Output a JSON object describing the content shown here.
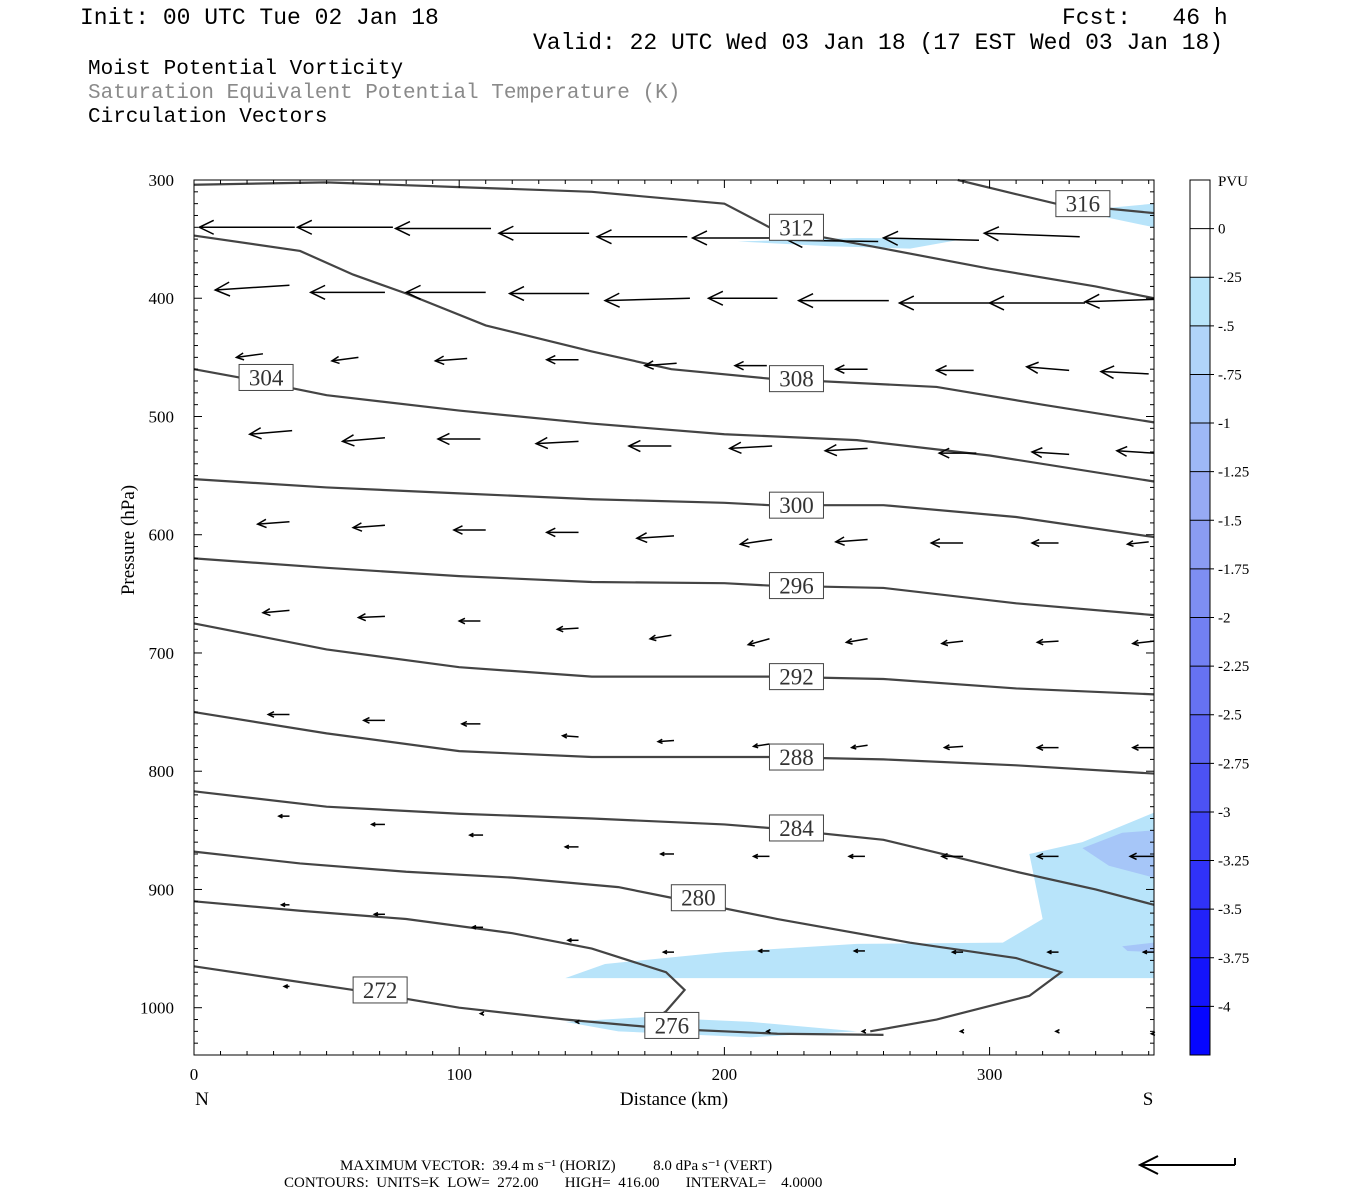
{
  "header": {
    "init": "Init: 00 UTC Tue 02 Jan 18",
    "fcst": "Fcst:   46 h",
    "valid": "Valid: 22 UTC Wed 03 Jan 18 (17 EST Wed 03 Jan 18)"
  },
  "fields": [
    "Moist Potential Vorticity",
    "Saturation Equivalent Potential Temperature (K)",
    "Circulation Vectors"
  ],
  "footer": {
    "line1": "MAXIMUM VECTOR:  39.4 m s⁻¹ (HORIZ)          8.0 dPa s⁻¹ (VERT)",
    "line2": "CONTOURS:  UNITS=K  LOW=  272.00       HIGH=  416.00       INTERVAL=    4.0000"
  },
  "colors": {
    "contour": "#444444",
    "pv_fill_light": "#b8e4fa",
    "pv_fill_medium": "#a6c6f8"
  },
  "chart_data": {
    "type": "cross-section",
    "xlabel": "Distance (km)",
    "ylabel": "Pressure (hPa)",
    "x_ends": [
      "N",
      "S"
    ],
    "xlim": [
      0,
      362
    ],
    "ylim": [
      1040,
      300
    ],
    "x_ticks": [
      0,
      100,
      200,
      300
    ],
    "y_ticks": [
      300,
      400,
      500,
      600,
      700,
      800,
      900,
      1000
    ],
    "colorbar": {
      "label": "PVU",
      "ticks": [
        "0",
        "-.25",
        "-.5",
        "-.75",
        "-1",
        "-1.25",
        "-1.5",
        "-1.75",
        "-2",
        "-2.25",
        "-2.5",
        "-2.75",
        "-3",
        "-3.25",
        "-3.5",
        "-3.75",
        "-4"
      ],
      "colors": [
        "#ffffff",
        "#ffffff",
        "#b8e4fa",
        "#b0d4fa",
        "#a6c6f8",
        "#9eb8f6",
        "#96aaf4",
        "#8a9cf2",
        "#7e8ef2",
        "#7280f2",
        "#6672f2",
        "#5a62f2",
        "#4c52f4",
        "#3e42f6",
        "#3032f8",
        "#2222fa",
        "#1414fc",
        "#0606ff"
      ]
    },
    "contours": [
      {
        "label": "272",
        "label_at": [
          60,
          985
        ],
        "points": [
          [
            0,
            965
          ],
          [
            30,
            975
          ],
          [
            60,
            985
          ],
          [
            100,
            1000
          ],
          [
            140,
            1010
          ],
          [
            180,
            1018
          ],
          [
            220,
            1022
          ],
          [
            260,
            1023
          ]
        ]
      },
      {
        "label": "276",
        "label_at": [
          170,
          1015
        ],
        "points": [
          [
            0,
            910
          ],
          [
            40,
            918
          ],
          [
            80,
            925
          ],
          [
            120,
            937
          ],
          [
            150,
            950
          ],
          [
            178,
            970
          ],
          [
            185,
            985
          ],
          [
            178,
            1003
          ],
          [
            170,
            1015
          ]
        ]
      },
      {
        "label": "280",
        "label_at": [
          180,
          907
        ],
        "points": [
          [
            0,
            868
          ],
          [
            40,
            878
          ],
          [
            80,
            885
          ],
          [
            120,
            890
          ],
          [
            160,
            898
          ],
          [
            180,
            907
          ],
          [
            220,
            925
          ],
          [
            270,
            945
          ],
          [
            310,
            958
          ],
          [
            327,
            970
          ],
          [
            315,
            990
          ],
          [
            280,
            1010
          ],
          [
            255,
            1020
          ]
        ]
      },
      {
        "label": "284",
        "label_at": [
          217,
          848
        ],
        "points": [
          [
            0,
            817
          ],
          [
            50,
            830
          ],
          [
            100,
            836
          ],
          [
            150,
            840
          ],
          [
            200,
            845
          ],
          [
            217,
            848
          ],
          [
            260,
            858
          ],
          [
            310,
            885
          ],
          [
            340,
            900
          ],
          [
            362,
            913
          ]
        ]
      },
      {
        "label": "288",
        "label_at": [
          217,
          788
        ],
        "points": [
          [
            0,
            750
          ],
          [
            50,
            768
          ],
          [
            100,
            783
          ],
          [
            150,
            788
          ],
          [
            200,
            788
          ],
          [
            217,
            788
          ],
          [
            260,
            790
          ],
          [
            310,
            795
          ],
          [
            362,
            802
          ]
        ]
      },
      {
        "label": "292",
        "label_at": [
          217,
          720
        ],
        "points": [
          [
            0,
            675
          ],
          [
            50,
            697
          ],
          [
            100,
            712
          ],
          [
            150,
            720
          ],
          [
            200,
            720
          ],
          [
            217,
            720
          ],
          [
            260,
            722
          ],
          [
            310,
            730
          ],
          [
            362,
            735
          ]
        ]
      },
      {
        "label": "296",
        "label_at": [
          217,
          643
        ],
        "points": [
          [
            0,
            620
          ],
          [
            50,
            628
          ],
          [
            100,
            635
          ],
          [
            150,
            640
          ],
          [
            200,
            641
          ],
          [
            217,
            643
          ],
          [
            260,
            645
          ],
          [
            310,
            658
          ],
          [
            362,
            668
          ]
        ]
      },
      {
        "label": "300",
        "label_at": [
          217,
          575
        ],
        "points": [
          [
            0,
            553
          ],
          [
            50,
            560
          ],
          [
            100,
            565
          ],
          [
            150,
            570
          ],
          [
            200,
            573
          ],
          [
            217,
            575
          ],
          [
            260,
            575
          ],
          [
            310,
            585
          ],
          [
            362,
            602
          ]
        ]
      },
      {
        "label": "304",
        "label_at": [
          17,
          467
        ],
        "points": [
          [
            0,
            460
          ],
          [
            17,
            467
          ],
          [
            50,
            482
          ],
          [
            100,
            495
          ],
          [
            150,
            506
          ],
          [
            200,
            515
          ],
          [
            250,
            520
          ],
          [
            300,
            533
          ],
          [
            362,
            555
          ]
        ]
      },
      {
        "label": "308",
        "label_at": [
          217,
          468
        ],
        "points": [
          [
            0,
            347
          ],
          [
            40,
            360
          ],
          [
            60,
            380
          ],
          [
            80,
            396
          ],
          [
            110,
            423
          ],
          [
            150,
            445
          ],
          [
            180,
            460
          ],
          [
            217,
            468
          ],
          [
            280,
            475
          ],
          [
            320,
            490
          ],
          [
            362,
            505
          ]
        ]
      },
      {
        "label": "312",
        "label_at": [
          217,
          340
        ],
        "points": [
          [
            0,
            304
          ],
          [
            50,
            302
          ],
          [
            100,
            306
          ],
          [
            150,
            310
          ],
          [
            200,
            320
          ],
          [
            217,
            340
          ],
          [
            260,
            358
          ],
          [
            300,
            375
          ],
          [
            340,
            390
          ],
          [
            362,
            400
          ]
        ]
      },
      {
        "label": "316",
        "label_at": [
          325,
          320
        ],
        "points": [
          [
            288,
            300
          ],
          [
            310,
            312
          ],
          [
            325,
            320
          ],
          [
            362,
            328
          ]
        ]
      }
    ],
    "pv_regions": [
      {
        "value": -0.25,
        "points": [
          [
            205,
            352
          ],
          [
            250,
            349
          ],
          [
            290,
            350
          ],
          [
            270,
            358
          ],
          [
            240,
            356
          ]
        ]
      },
      {
        "value": -0.25,
        "points": [
          [
            338,
            325
          ],
          [
            362,
            320
          ],
          [
            362,
            340
          ],
          [
            345,
            332
          ]
        ]
      },
      {
        "value": -0.25,
        "points": [
          [
            315,
            870
          ],
          [
            335,
            860
          ],
          [
            362,
            835
          ],
          [
            362,
            975
          ],
          [
            140,
            975
          ],
          [
            155,
            963
          ],
          [
            200,
            953
          ],
          [
            250,
            946
          ],
          [
            305,
            945
          ],
          [
            320,
            925
          ]
        ]
      },
      {
        "value": -0.5,
        "points": [
          [
            335,
            865
          ],
          [
            350,
            852
          ],
          [
            362,
            850
          ],
          [
            362,
            890
          ],
          [
            345,
            880
          ]
        ]
      },
      {
        "value": -0.5,
        "points": [
          [
            350,
            948
          ],
          [
            362,
            945
          ],
          [
            362,
            953
          ],
          [
            352,
            952
          ]
        ]
      },
      {
        "value": -0.25,
        "points": [
          [
            140,
            1012
          ],
          [
            170,
            1008
          ],
          [
            210,
            1012
          ],
          [
            250,
            1020
          ],
          [
            210,
            1025
          ],
          [
            160,
            1020
          ]
        ]
      }
    ],
    "vectors_note": "circulation vectors, rows at pressure levels, values as [x_km, pressure_hPa, dx_km, dp_hPa]",
    "vectors": [
      [
        38,
        340,
        -36,
        0
      ],
      [
        75,
        340,
        -36,
        0
      ],
      [
        112,
        341,
        -36,
        0
      ],
      [
        149,
        345,
        -34,
        0
      ],
      [
        186,
        348,
        -34,
        0
      ],
      [
        222,
        349,
        -34,
        0
      ],
      [
        258,
        352,
        -34,
        -1
      ],
      [
        296,
        351,
        -36,
        -2
      ],
      [
        334,
        348,
        -36,
        -3
      ],
      [
        36,
        389,
        -28,
        4
      ],
      [
        72,
        395,
        -28,
        0
      ],
      [
        110,
        395,
        -30,
        0
      ],
      [
        149,
        396,
        -30,
        0
      ],
      [
        187,
        400,
        -32,
        2
      ],
      [
        220,
        400,
        -26,
        0
      ],
      [
        262,
        402,
        -34,
        0
      ],
      [
        300,
        404,
        -34,
        0
      ],
      [
        336,
        404,
        -36,
        0
      ],
      [
        362,
        401,
        -26,
        2
      ],
      [
        26,
        447,
        -10,
        3
      ],
      [
        62,
        450,
        -10,
        3
      ],
      [
        103,
        451,
        -12,
        2
      ],
      [
        145,
        452,
        -12,
        0
      ],
      [
        182,
        455,
        -12,
        2
      ],
      [
        216,
        457,
        -12,
        0
      ],
      [
        254,
        460,
        -12,
        0
      ],
      [
        294,
        461,
        -14,
        0
      ],
      [
        330,
        461,
        -16,
        -3
      ],
      [
        360,
        464,
        -18,
        -2
      ],
      [
        37,
        512,
        -16,
        3
      ],
      [
        72,
        518,
        -16,
        3
      ],
      [
        108,
        519,
        -16,
        0
      ],
      [
        145,
        521,
        -16,
        2
      ],
      [
        180,
        525,
        -16,
        0
      ],
      [
        218,
        525,
        -16,
        2
      ],
      [
        254,
        527,
        -16,
        2
      ],
      [
        295,
        531,
        -14,
        0
      ],
      [
        330,
        532,
        -14,
        -2
      ],
      [
        362,
        531,
        -14,
        -2
      ],
      [
        36,
        589,
        -12,
        2
      ],
      [
        72,
        592,
        -12,
        2
      ],
      [
        110,
        596,
        -12,
        0
      ],
      [
        145,
        598,
        -12,
        0
      ],
      [
        181,
        601,
        -14,
        2
      ],
      [
        218,
        604,
        -12,
        4
      ],
      [
        254,
        604,
        -12,
        2
      ],
      [
        290,
        607,
        -12,
        0
      ],
      [
        326,
        607,
        -10,
        0
      ],
      [
        360,
        606,
        -8,
        2
      ],
      [
        36,
        664,
        -10,
        2
      ],
      [
        72,
        669,
        -10,
        1
      ],
      [
        108,
        673,
        -8,
        0
      ],
      [
        145,
        679,
        -8,
        1
      ],
      [
        180,
        685,
        -8,
        3
      ],
      [
        217,
        688,
        -8,
        5
      ],
      [
        254,
        688,
        -8,
        3
      ],
      [
        290,
        690,
        -8,
        2
      ],
      [
        326,
        690,
        -8,
        1
      ],
      [
        362,
        690,
        -8,
        2
      ],
      [
        36,
        752,
        -8,
        0
      ],
      [
        72,
        757,
        -8,
        0
      ],
      [
        108,
        760,
        -7,
        0
      ],
      [
        145,
        771,
        -6,
        -1
      ],
      [
        181,
        774,
        -6,
        1
      ],
      [
        217,
        777,
        -6,
        2
      ],
      [
        254,
        778,
        -6,
        2
      ],
      [
        290,
        779,
        -7,
        1
      ],
      [
        326,
        780,
        -8,
        0
      ],
      [
        362,
        780,
        -8,
        0
      ],
      [
        36,
        838,
        -4,
        0
      ],
      [
        72,
        845,
        -5,
        0
      ],
      [
        109,
        854,
        -5,
        0
      ],
      [
        145,
        864,
        -5,
        0
      ],
      [
        181,
        870,
        -5,
        0
      ],
      [
        217,
        872,
        -6,
        0
      ],
      [
        253,
        872,
        -6,
        0
      ],
      [
        290,
        872,
        -8,
        0
      ],
      [
        326,
        872,
        -8,
        0
      ],
      [
        362,
        872,
        -9,
        0
      ],
      [
        36,
        913,
        -3,
        0
      ],
      [
        72,
        921,
        -4,
        0
      ],
      [
        109,
        932,
        -4,
        0
      ],
      [
        145,
        943,
        -4,
        0
      ],
      [
        181,
        953,
        -4,
        0
      ],
      [
        217,
        952,
        -4,
        0
      ],
      [
        253,
        952,
        -4,
        0
      ],
      [
        290,
        953,
        -4,
        0
      ],
      [
        326,
        953,
        -4,
        0
      ],
      [
        362,
        953,
        -4,
        0
      ],
      [
        36,
        982,
        -2,
        0
      ],
      [
        72,
        990,
        -2,
        0
      ],
      [
        109,
        1005,
        -1,
        0
      ],
      [
        145,
        1012,
        -1,
        0
      ],
      [
        181,
        1016,
        -1,
        0
      ],
      [
        217,
        1020,
        -1,
        0
      ],
      [
        253,
        1020,
        -1,
        0
      ],
      [
        290,
        1020,
        -1,
        0
      ],
      [
        326,
        1020,
        -1,
        0
      ],
      [
        362,
        1022,
        -1,
        0
      ]
    ]
  }
}
